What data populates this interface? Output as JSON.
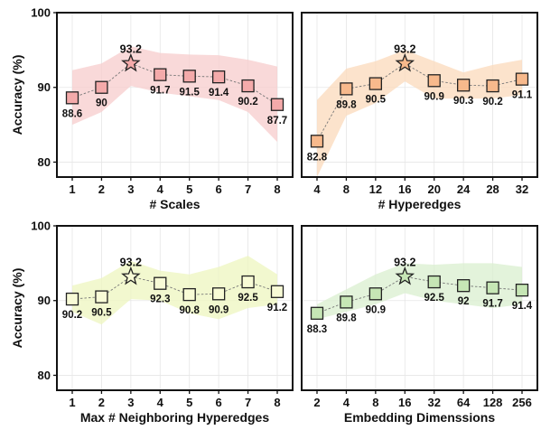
{
  "chart_data": [
    {
      "type": "line",
      "xlabel": "# Scales",
      "ylabel": "Accuracy (%)",
      "categories": [
        "1",
        "2",
        "3",
        "4",
        "5",
        "6",
        "7",
        "8"
      ],
      "values": [
        88.6,
        90.0,
        93.2,
        91.7,
        91.5,
        91.4,
        90.2,
        87.7
      ],
      "band_upper": [
        92.3,
        93.2,
        95.5,
        94.6,
        94.4,
        94.3,
        93.7,
        92.8
      ],
      "band_lower": [
        85.0,
        86.7,
        90.2,
        89.3,
        88.8,
        88.3,
        86.7,
        82.7
      ],
      "best_index": 2,
      "ylim": [
        78,
        100
      ],
      "yticks": [
        80,
        90,
        100
      ],
      "grid": true,
      "colors": {
        "band": "#f7cccc",
        "marker_fill": "#f4aaaa"
      }
    },
    {
      "type": "line",
      "xlabel": "# Hyperedges",
      "ylabel": "",
      "categories": [
        "4",
        "8",
        "12",
        "16",
        "20",
        "24",
        "28",
        "32"
      ],
      "values": [
        82.8,
        89.8,
        90.5,
        93.2,
        90.9,
        90.3,
        90.2,
        91.1
      ],
      "band_upper": [
        88.3,
        92.5,
        93.5,
        95.0,
        93.5,
        92.0,
        93.0,
        93.7
      ],
      "band_lower": [
        78.0,
        86.2,
        87.9,
        90.8,
        88.5,
        88.5,
        88.5,
        89.0
      ],
      "best_index": 3,
      "ylim": [
        78,
        100
      ],
      "yticks": [
        80,
        90,
        100
      ],
      "grid": true,
      "colors": {
        "band": "#fbd9bb",
        "marker_fill": "#f7b98c"
      }
    },
    {
      "type": "line",
      "xlabel": "Max # Neighboring Hyperedges",
      "ylabel": "Accuracy (%)",
      "categories": [
        "1",
        "2",
        "3",
        "4",
        "5",
        "6",
        "7",
        "8"
      ],
      "values": [
        90.2,
        90.5,
        93.2,
        92.3,
        90.8,
        90.9,
        92.5,
        91.2
      ],
      "band_upper": [
        92.0,
        93.0,
        95.3,
        94.0,
        93.5,
        94.5,
        96.0,
        93.5
      ],
      "band_lower": [
        88.5,
        86.8,
        90.2,
        90.0,
        88.3,
        87.5,
        89.0,
        89.5
      ],
      "best_index": 2,
      "ylim": [
        78,
        100
      ],
      "yticks": [
        80,
        90,
        100
      ],
      "grid": true,
      "colors": {
        "band": "#eef5bf",
        "marker_fill": "#f8fbd6"
      }
    },
    {
      "type": "line",
      "xlabel": "Embedding Dimenssions",
      "ylabel": "",
      "categories": [
        "2",
        "4",
        "8",
        "16",
        "32",
        "64",
        "128",
        "256"
      ],
      "values": [
        88.3,
        89.8,
        90.9,
        93.2,
        92.5,
        92.0,
        91.7,
        91.4
      ],
      "band_upper": [
        89.5,
        91.5,
        93.5,
        95.0,
        94.8,
        95.0,
        95.0,
        94.5
      ],
      "band_lower": [
        87.5,
        88.5,
        89.5,
        91.0,
        90.0,
        89.5,
        89.0,
        89.5
      ],
      "best_index": 3,
      "ylim": [
        78,
        100
      ],
      "yticks": [
        80,
        90,
        100
      ],
      "grid": true,
      "colors": {
        "band": "#d9efcf",
        "marker_fill": "#c6e6b5"
      }
    }
  ]
}
